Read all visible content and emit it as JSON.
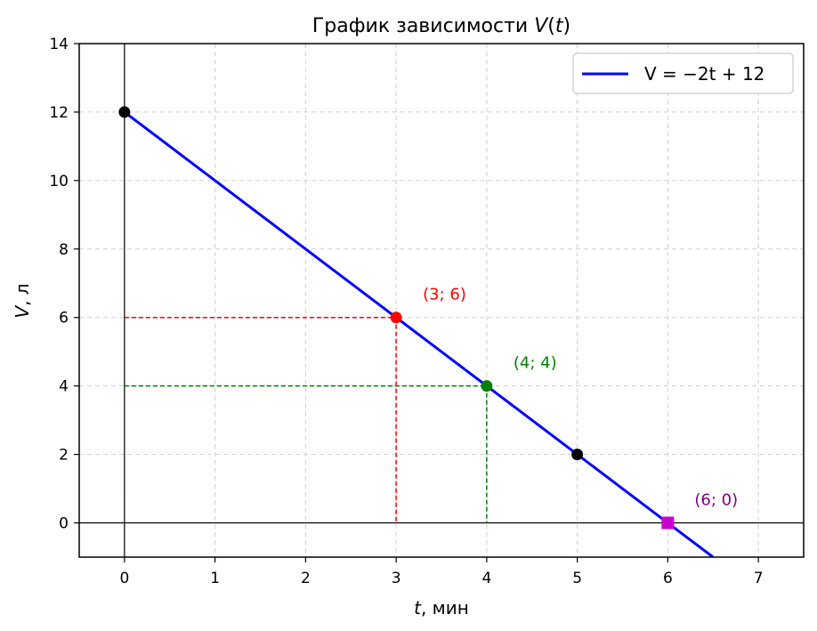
{
  "chart_data": {
    "type": "line",
    "title_prefix": "График зависимости ",
    "title_var": "V",
    "title_arg": "t",
    "xlabel_var": "t",
    "xlabel_unit": ", мин",
    "ylabel_var": "V",
    "ylabel_unit": ", л",
    "xlim": [
      -0.5,
      7.5
    ],
    "ylim": [
      -1,
      14
    ],
    "xticks": [
      0,
      1,
      2,
      3,
      4,
      5,
      6,
      7
    ],
    "yticks": [
      0,
      2,
      4,
      6,
      8,
      10,
      12,
      14
    ],
    "grid": true,
    "legend_position": "top-right",
    "series": [
      {
        "name": "V = −2t + 12",
        "color": "#0000ff",
        "x": [
          0,
          6.5
        ],
        "y": [
          12,
          -1
        ]
      }
    ],
    "points": [
      {
        "x": 0,
        "y": 12,
        "color": "#000000",
        "marker": "circle"
      },
      {
        "x": 3,
        "y": 6,
        "color": "#ff0000",
        "marker": "circle",
        "label": "(3; 6)"
      },
      {
        "x": 4,
        "y": 4,
        "color": "#008000",
        "marker": "circle",
        "label": "(4; 4)"
      },
      {
        "x": 5,
        "y": 2,
        "color": "#000000",
        "marker": "circle"
      },
      {
        "x": 6,
        "y": 0,
        "color": "#cc00cc",
        "marker": "square",
        "label": "(6; 0)",
        "label_color": "#800080"
      }
    ],
    "guides": [
      {
        "x": 3,
        "y": 6,
        "color": "#ff0000"
      },
      {
        "x": 4,
        "y": 4,
        "color": "#008000"
      }
    ]
  }
}
